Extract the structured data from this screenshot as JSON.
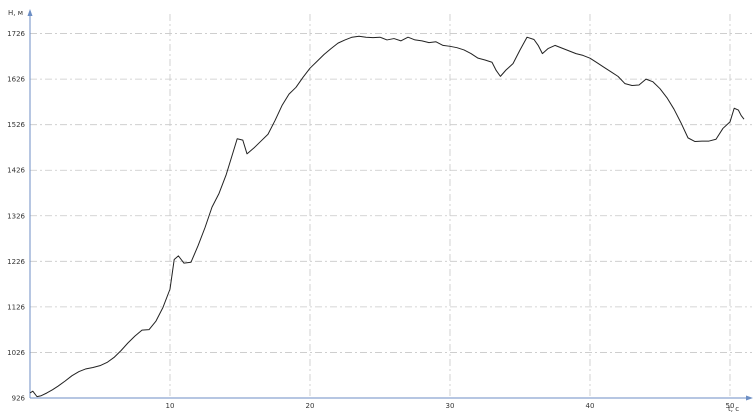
{
  "chart_data": {
    "type": "line",
    "ylabel": "H, м",
    "xlabel": "t, с",
    "xlim": [
      0,
      51
    ],
    "ylim": [
      926,
      1736
    ],
    "x_ticks": [
      10,
      20,
      30,
      40,
      50
    ],
    "y_ticks": [
      926,
      1026,
      1126,
      1226,
      1326,
      1426,
      1526,
      1626,
      1726
    ],
    "grid": true,
    "legend": "none",
    "colors": {
      "line": "#222222",
      "grid": "#c8c8c8",
      "axis": "#6c8ec4",
      "text": "#333333",
      "background": "#ffffff"
    },
    "series": [
      {
        "points": [
          [
            0,
            937
          ],
          [
            0.2,
            941
          ],
          [
            0.5,
            929
          ],
          [
            0.8,
            931
          ],
          [
            1.2,
            937
          ],
          [
            1.6,
            944
          ],
          [
            2.0,
            952
          ],
          [
            2.5,
            963
          ],
          [
            3.0,
            975
          ],
          [
            3.5,
            984
          ],
          [
            4.0,
            990
          ],
          [
            4.5,
            993
          ],
          [
            5.0,
            997
          ],
          [
            5.5,
            1004
          ],
          [
            6.0,
            1015
          ],
          [
            6.5,
            1030
          ],
          [
            7.0,
            1047
          ],
          [
            7.5,
            1062
          ],
          [
            8.0,
            1075
          ],
          [
            8.5,
            1076
          ],
          [
            9.0,
            1095
          ],
          [
            9.5,
            1125
          ],
          [
            10.0,
            1165
          ],
          [
            10.3,
            1230
          ],
          [
            10.6,
            1238
          ],
          [
            11.0,
            1222
          ],
          [
            11.5,
            1224
          ],
          [
            12.0,
            1260
          ],
          [
            12.5,
            1300
          ],
          [
            13.0,
            1345
          ],
          [
            13.5,
            1375
          ],
          [
            14.0,
            1415
          ],
          [
            14.5,
            1465
          ],
          [
            14.8,
            1495
          ],
          [
            15.2,
            1492
          ],
          [
            15.5,
            1462
          ],
          [
            16.0,
            1475
          ],
          [
            16.5,
            1490
          ],
          [
            17.0,
            1505
          ],
          [
            17.5,
            1535
          ],
          [
            18.0,
            1568
          ],
          [
            18.5,
            1593
          ],
          [
            19.0,
            1608
          ],
          [
            19.5,
            1630
          ],
          [
            20.0,
            1650
          ],
          [
            20.5,
            1665
          ],
          [
            21.0,
            1680
          ],
          [
            21.5,
            1693
          ],
          [
            22.0,
            1705
          ],
          [
            22.5,
            1712
          ],
          [
            23.0,
            1718
          ],
          [
            23.5,
            1720
          ],
          [
            24.0,
            1718
          ],
          [
            24.5,
            1717
          ],
          [
            25.0,
            1718
          ],
          [
            25.5,
            1712
          ],
          [
            26.0,
            1715
          ],
          [
            26.5,
            1710
          ],
          [
            27.0,
            1718
          ],
          [
            27.5,
            1712
          ],
          [
            28.0,
            1710
          ],
          [
            28.5,
            1706
          ],
          [
            29.0,
            1708
          ],
          [
            29.5,
            1700
          ],
          [
            30.0,
            1698
          ],
          [
            30.5,
            1695
          ],
          [
            31.0,
            1690
          ],
          [
            31.5,
            1682
          ],
          [
            32.0,
            1672
          ],
          [
            32.5,
            1668
          ],
          [
            33.0,
            1663
          ],
          [
            33.3,
            1645
          ],
          [
            33.6,
            1632
          ],
          [
            34.0,
            1646
          ],
          [
            34.5,
            1660
          ],
          [
            35.0,
            1690
          ],
          [
            35.5,
            1718
          ],
          [
            36.0,
            1713
          ],
          [
            36.3,
            1700
          ],
          [
            36.6,
            1682
          ],
          [
            37.0,
            1693
          ],
          [
            37.5,
            1700
          ],
          [
            38.0,
            1694
          ],
          [
            38.5,
            1688
          ],
          [
            39.0,
            1682
          ],
          [
            39.5,
            1678
          ],
          [
            40.0,
            1672
          ],
          [
            40.5,
            1662
          ],
          [
            41.0,
            1652
          ],
          [
            41.5,
            1642
          ],
          [
            42.0,
            1632
          ],
          [
            42.5,
            1616
          ],
          [
            43.0,
            1612
          ],
          [
            43.5,
            1613
          ],
          [
            44.0,
            1626
          ],
          [
            44.5,
            1620
          ],
          [
            45.0,
            1605
          ],
          [
            45.5,
            1585
          ],
          [
            46.0,
            1560
          ],
          [
            46.5,
            1530
          ],
          [
            47.0,
            1497
          ],
          [
            47.5,
            1489
          ],
          [
            48.0,
            1490
          ],
          [
            48.5,
            1490
          ],
          [
            49.0,
            1494
          ],
          [
            49.5,
            1518
          ],
          [
            50.0,
            1532
          ],
          [
            50.3,
            1562
          ],
          [
            50.6,
            1558
          ],
          [
            50.8,
            1546
          ],
          [
            51.0,
            1538
          ]
        ]
      }
    ]
  }
}
